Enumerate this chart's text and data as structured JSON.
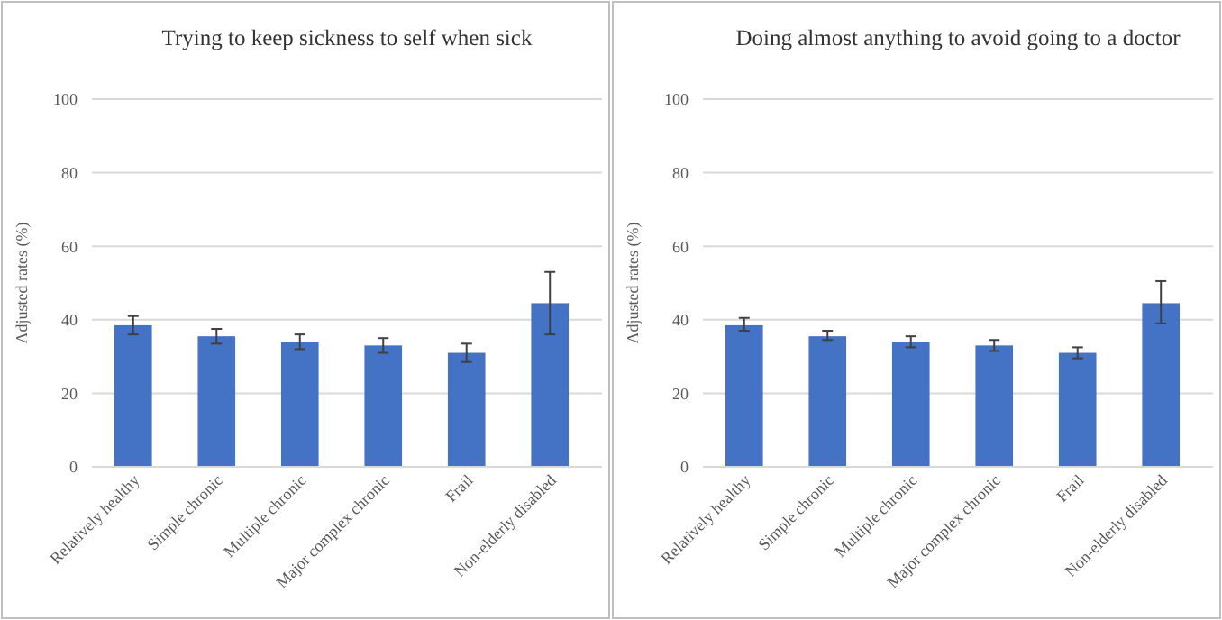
{
  "chart_data": [
    {
      "type": "bar",
      "title": "Trying to keep sickness to self when sick",
      "ylabel": "Adjusted rates (%)",
      "categories": [
        "Relatively healthy",
        "Simple chronic",
        "Multiple chronic",
        "Major complex chronic",
        "Frail",
        "Non-elderly disabled"
      ],
      "series": [
        {
          "color": "#4472c4",
          "values": [
            38.5,
            35.5,
            34,
            33,
            31,
            44.5
          ],
          "errors": [
            [
              36,
              41
            ],
            [
              33.5,
              37.5
            ],
            [
              32,
              36
            ],
            [
              31,
              35
            ],
            [
              28.5,
              33.5
            ],
            [
              36,
              53
            ]
          ]
        }
      ],
      "ylim": [
        0,
        100
      ],
      "yticks": [
        0,
        20,
        40,
        60,
        80,
        100
      ],
      "grid": "y"
    },
    {
      "type": "bar",
      "title": "Doing almost anything to avoid going to a doctor",
      "ylabel": "Adjusted rates (%)",
      "categories": [
        "Relatively healthy",
        "Simple chronic",
        "Multiple chronic",
        "Major complex chronic",
        "Frail",
        "Non-elderly disabled"
      ],
      "series": [
        {
          "color": "#4472c4",
          "values": [
            38.5,
            35.5,
            34,
            33,
            31,
            44.5
          ],
          "errors": [
            [
              37,
              40.5
            ],
            [
              34.5,
              37
            ],
            [
              32.5,
              35.5
            ],
            [
              31.5,
              34.5
            ],
            [
              29.5,
              32.5
            ],
            [
              39,
              50.5
            ]
          ]
        }
      ],
      "ylim": [
        0,
        100
      ],
      "yticks": [
        0,
        20,
        40,
        60,
        80,
        100
      ],
      "grid": "y"
    }
  ]
}
